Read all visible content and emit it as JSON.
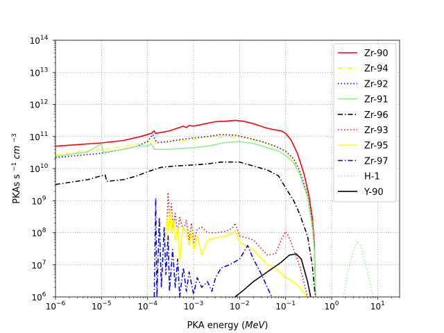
{
  "chart_data": {
    "type": "line",
    "title": "",
    "xlabel": "PKA energy",
    "xlabel_unit": "MeV",
    "ylabel": "PKAs s",
    "ylabel_sup1": "−1",
    "ylabel_mid": "cm",
    "ylabel_sup2": "−3",
    "xscale": "log",
    "yscale": "log",
    "xlim": [
      1e-06,
      30
    ],
    "ylim": [
      1000000.0,
      100000000000000.0
    ],
    "grid": true,
    "legend_position": "upper-right",
    "x_ticks": [
      {
        "base": "10",
        "exp": "−6",
        "value": 1e-06
      },
      {
        "base": "10",
        "exp": "−5",
        "value": 1e-05
      },
      {
        "base": "10",
        "exp": "−4",
        "value": 0.0001
      },
      {
        "base": "10",
        "exp": "−3",
        "value": 0.001
      },
      {
        "base": "10",
        "exp": "−2",
        "value": 0.01
      },
      {
        "base": "10",
        "exp": "−1",
        "value": 0.1
      },
      {
        "base": "10",
        "exp": "0",
        "value": 1
      },
      {
        "base": "10",
        "exp": "1",
        "value": 10
      }
    ],
    "y_ticks": [
      {
        "base": "10",
        "exp": "6",
        "value": 1000000.0
      },
      {
        "base": "10",
        "exp": "7",
        "value": 10000000.0
      },
      {
        "base": "10",
        "exp": "8",
        "value": 100000000.0
      },
      {
        "base": "10",
        "exp": "9",
        "value": 1000000000.0
      },
      {
        "base": "10",
        "exp": "10",
        "value": 10000000000.0
      },
      {
        "base": "10",
        "exp": "11",
        "value": 100000000000.0
      },
      {
        "base": "10",
        "exp": "12",
        "value": 1000000000000.0
      },
      {
        "base": "10",
        "exp": "13",
        "value": 10000000000000.0
      },
      {
        "base": "10",
        "exp": "14",
        "value": 100000000000000.0
      }
    ],
    "series": [
      {
        "name": "Zr-90",
        "color": "#ff0000",
        "dash": "solid",
        "points": [
          [
            1e-06,
            50000000000.0
          ],
          [
            1e-05,
            63000000000.0
          ],
          [
            3e-05,
            75000000000.0
          ],
          [
            7e-05,
            100000000000.0
          ],
          [
            0.00012,
            125000000000.0
          ],
          [
            0.00014,
            150000000000.0
          ],
          [
            0.00015,
            125000000000.0
          ],
          [
            0.0003,
            150000000000.0
          ],
          [
            0.0006,
            210000000000.0
          ],
          [
            0.0007,
            190000000000.0
          ],
          [
            0.0008,
            220000000000.0
          ],
          [
            0.001,
            210000000000.0
          ],
          [
            0.002,
            260000000000.0
          ],
          [
            0.003,
            290000000000.0
          ],
          [
            0.005,
            300000000000.0
          ],
          [
            0.008,
            320000000000.0
          ],
          [
            0.012,
            300000000000.0
          ],
          [
            0.02,
            250000000000.0
          ],
          [
            0.04,
            180000000000.0
          ],
          [
            0.06,
            160000000000.0
          ],
          [
            0.08,
            150000000000.0
          ],
          [
            0.1,
            125000000000.0
          ],
          [
            0.13,
            80000000000.0
          ],
          [
            0.18,
            30000000000.0
          ],
          [
            0.25,
            7000000000.0
          ],
          [
            0.32,
            1500000000.0
          ],
          [
            0.38,
            300000000.0
          ],
          [
            0.42,
            50000000.0
          ],
          [
            0.45,
            1000000.0
          ]
        ]
      },
      {
        "name": "Zr-94",
        "color": "#ffff00",
        "dash": "dashdot",
        "points": [
          [
            1e-06,
            27000000000.0
          ],
          [
            1e-05,
            40000000000.0
          ],
          [
            3e-05,
            50000000000.0
          ],
          [
            7e-05,
            60000000000.0
          ],
          [
            0.00012,
            70000000000.0
          ],
          [
            0.00014,
            80000000000.0
          ],
          [
            0.00015,
            60000000000.0
          ],
          [
            0.0003,
            70000000000.0
          ],
          [
            0.001,
            80000000000.0
          ],
          [
            0.002,
            100000000000.0
          ],
          [
            0.005,
            110000000000.0
          ],
          [
            0.01,
            100000000000.0
          ],
          [
            0.02,
            80000000000.0
          ],
          [
            0.04,
            60000000000.0
          ],
          [
            0.07,
            45000000000.0
          ],
          [
            0.1,
            32000000000.0
          ],
          [
            0.15,
            18000000000.0
          ],
          [
            0.2,
            8000000000.0
          ],
          [
            0.3,
            1500000000.0
          ],
          [
            0.38,
            200000000.0
          ],
          [
            0.43,
            20000000.0
          ],
          [
            0.45,
            1000000.0
          ]
        ]
      },
      {
        "name": "Zr-92",
        "color": "#0000ff",
        "dash": "dotted",
        "points": [
          [
            1e-06,
            22000000000.0
          ],
          [
            1e-05,
            30000000000.0
          ],
          [
            3e-05,
            40000000000.0
          ],
          [
            6e-05,
            50000000000.0
          ],
          [
            0.0001,
            70000000000.0
          ],
          [
            0.00012,
            100000000000.0
          ],
          [
            0.00013,
            115000000000.0
          ],
          [
            0.00014,
            90000000000.0
          ],
          [
            0.00016,
            65000000000.0
          ],
          [
            0.0003,
            70000000000.0
          ],
          [
            0.0005,
            80000000000.0
          ],
          [
            0.001,
            90000000000.0
          ],
          [
            0.002,
            100000000000.0
          ],
          [
            0.004,
            115000000000.0
          ],
          [
            0.008,
            110000000000.0
          ],
          [
            0.015,
            90000000000.0
          ],
          [
            0.03,
            70000000000.0
          ],
          [
            0.06,
            50000000000.0
          ],
          [
            0.1,
            35000000000.0
          ],
          [
            0.15,
            20000000000.0
          ],
          [
            0.2,
            9000000000.0
          ],
          [
            0.3,
            1500000000.0
          ],
          [
            0.38,
            200000000.0
          ],
          [
            0.43,
            20000000.0
          ],
          [
            0.45,
            1000000.0
          ]
        ]
      },
      {
        "name": "Zr-91",
        "color": "#90ee90",
        "dash": "solid",
        "points": [
          [
            1e-06,
            24000000000.0
          ],
          [
            5e-06,
            33000000000.0
          ],
          [
            1e-05,
            60000000000.0
          ],
          [
            1.1e-05,
            32000000000.0
          ],
          [
            3e-05,
            40000000000.0
          ],
          [
            6e-05,
            50000000000.0
          ],
          [
            0.0001,
            50000000000.0
          ],
          [
            0.00012,
            60000000000.0
          ],
          [
            0.00014,
            40000000000.0
          ],
          [
            0.0003,
            40000000000.0
          ],
          [
            0.001,
            45000000000.0
          ],
          [
            0.002,
            50000000000.0
          ],
          [
            0.005,
            65000000000.0
          ],
          [
            0.01,
            70000000000.0
          ],
          [
            0.02,
            60000000000.0
          ],
          [
            0.04,
            45000000000.0
          ],
          [
            0.07,
            35000000000.0
          ],
          [
            0.1,
            26000000000.0
          ],
          [
            0.15,
            15000000000.0
          ],
          [
            0.2,
            7000000000.0
          ],
          [
            0.3,
            1300000000.0
          ],
          [
            0.38,
            150000000.0
          ],
          [
            0.43,
            20000000.0
          ],
          [
            0.45,
            1000000.0
          ]
        ]
      },
      {
        "name": "Zr-96",
        "color": "#000000",
        "dash": "dashdot",
        "points": [
          [
            1e-06,
            3200000000.0
          ],
          [
            5e-06,
            4500000000.0
          ],
          [
            1e-05,
            6000000000.0
          ],
          [
            1.2e-05,
            6300000000.0
          ],
          [
            1.3e-05,
            4000000000.0
          ],
          [
            3e-05,
            4500000000.0
          ],
          [
            6e-05,
            6000000000.0
          ],
          [
            0.0001,
            8000000000.0
          ],
          [
            0.0002,
            11000000000.0
          ],
          [
            0.0004,
            12000000000.0
          ],
          [
            0.001,
            13000000000.0
          ],
          [
            0.002,
            14000000000.0
          ],
          [
            0.004,
            16000000000.0
          ],
          [
            0.01,
            16000000000.0
          ],
          [
            0.02,
            12000000000.0
          ],
          [
            0.04,
            9000000000.0
          ],
          [
            0.07,
            6000000000.0
          ],
          [
            0.1,
            2500000000.0
          ],
          [
            0.15,
            1000000000.0
          ],
          [
            0.2,
            400000000.0
          ],
          [
            0.3,
            80000000.0
          ],
          [
            0.38,
            10000000.0
          ],
          [
            0.43,
            1500000.0
          ],
          [
            0.45,
            1000000.0
          ]
        ]
      },
      {
        "name": "Zr-93",
        "color": "#ff0000",
        "dash": "dotted",
        "points": [
          [
            0.00026,
            130000000.0
          ],
          [
            0.00028,
            1800000000.0
          ],
          [
            0.0003,
            300000000.0
          ],
          [
            0.00033,
            800000000.0
          ],
          [
            0.00036,
            150000000.0
          ],
          [
            0.0004,
            400000000.0
          ],
          [
            0.00045,
            100000000.0
          ],
          [
            0.0005,
            300000000.0
          ],
          [
            0.0006,
            120000000.0
          ],
          [
            0.0007,
            250000000.0
          ],
          [
            0.0008,
            60000000.0
          ],
          [
            0.0009,
            200000000.0
          ],
          [
            0.001,
            50000000.0
          ],
          [
            0.0012,
            130000000.0
          ],
          [
            0.0015,
            150000000.0
          ],
          [
            0.002,
            100000000.0
          ],
          [
            0.003,
            100000000.0
          ],
          [
            0.005,
            110000000.0
          ],
          [
            0.007,
            140000000.0
          ],
          [
            0.008,
            200000000.0
          ],
          [
            0.01,
            80000000.0
          ],
          [
            0.02,
            60000000.0
          ],
          [
            0.04,
            20000000.0
          ],
          [
            0.06,
            22000000.0
          ],
          [
            0.08,
            60000000.0
          ],
          [
            0.1,
            110000000.0
          ],
          [
            0.12,
            70000000.0
          ],
          [
            0.15,
            30000000.0
          ],
          [
            0.2,
            10000000.0
          ],
          [
            0.3,
            1000000.0
          ]
        ]
      },
      {
        "name": "Zr-95",
        "color": "#ffff00",
        "dash": "solid",
        "points": [
          [
            0.00025,
            50000000.0
          ],
          [
            0.00027,
            300000000.0
          ],
          [
            0.00029,
            120000000.0
          ],
          [
            0.00031,
            500000000.0
          ],
          [
            0.00033,
            100000000.0
          ],
          [
            0.00036,
            250000000.0
          ],
          [
            0.0004,
            60000000.0
          ],
          [
            0.00045,
            150000000.0
          ],
          [
            0.0005,
            12000000.0
          ],
          [
            0.00055,
            90000000.0
          ],
          [
            0.0006,
            150000000.0
          ],
          [
            0.0007,
            100000000.0
          ],
          [
            0.0008,
            40000000.0
          ],
          [
            0.0009,
            120000000.0
          ],
          [
            0.001,
            30000000.0
          ],
          [
            0.0012,
            80000000.0
          ],
          [
            0.0015,
            20000000.0
          ],
          [
            0.002,
            60000000.0
          ],
          [
            0.003,
            70000000.0
          ],
          [
            0.005,
            80000000.0
          ],
          [
            0.007,
            100000000.0
          ],
          [
            0.008,
            120000000.0
          ],
          [
            0.01,
            50000000.0
          ],
          [
            0.02,
            30000000.0
          ],
          [
            0.04,
            10000000.0
          ],
          [
            0.06,
            8000000.0
          ],
          [
            0.1,
            4000000.0
          ],
          [
            0.15,
            3000000.0
          ],
          [
            0.2,
            2000000.0
          ],
          [
            0.3,
            1000000.0
          ]
        ]
      },
      {
        "name": "Zr-97",
        "color": "#0000ff",
        "dash": "dashdot",
        "points": [
          [
            0.00014,
            1000000.0
          ],
          [
            0.00015,
            1200000000.0
          ],
          [
            0.00016,
            1000000.0
          ],
          [
            0.00018,
            300000000.0
          ],
          [
            0.0002,
            2000000.0
          ],
          [
            0.00023,
            150000000.0
          ],
          [
            0.00025,
            5000000.0
          ],
          [
            0.00028,
            80000000.0
          ],
          [
            0.0003,
            1500000.0
          ],
          [
            0.00035,
            30000000.0
          ],
          [
            0.0004,
            2000000.0
          ],
          [
            0.00045,
            15000000.0
          ],
          [
            0.0005,
            1000000.0
          ],
          [
            0.0006,
            8000000.0
          ],
          [
            0.0007,
            1500000.0
          ],
          [
            0.0008,
            6000000.0
          ],
          [
            0.001,
            1200000.0
          ],
          [
            0.0012,
            4000000.0
          ],
          [
            0.0015,
            2000000.0
          ],
          [
            0.002,
            3000000.0
          ],
          [
            0.0025,
            1500000.0
          ],
          [
            0.003,
            4000000.0
          ],
          [
            0.004,
            8000000.0
          ],
          [
            0.006,
            10000000.0
          ],
          [
            0.01,
            15000000.0
          ],
          [
            0.015,
            40000000.0
          ],
          [
            0.02,
            15000000.0
          ],
          [
            0.03,
            5000000.0
          ],
          [
            0.04,
            2000000.0
          ],
          [
            0.05,
            1000000.0
          ]
        ]
      },
      {
        "name": "H-1",
        "color": "#90ee90",
        "dash": "dotted",
        "points": [
          [
            1.8,
            1000000.0
          ],
          [
            2.2,
            5000000.0
          ],
          [
            2.8,
            20000000.0
          ],
          [
            3.5,
            55000000.0
          ],
          [
            4.3,
            40000000.0
          ],
          [
            5.3,
            12000000.0
          ],
          [
            6.5,
            4000000.0
          ],
          [
            8,
            1000000.0
          ]
        ]
      },
      {
        "name": "Y-90",
        "color": "#000000",
        "dash": "solid",
        "points": [
          [
            0.008,
            1000000.0
          ],
          [
            0.012,
            1600000.0
          ],
          [
            0.02,
            3000000.0
          ],
          [
            0.04,
            6000000.0
          ],
          [
            0.08,
            12000000.0
          ],
          [
            0.12,
            20000000.0
          ],
          [
            0.17,
            22000000.0
          ],
          [
            0.22,
            15000000.0
          ],
          [
            0.3,
            3000000.0
          ],
          [
            0.35,
            1000000.0
          ]
        ]
      }
    ]
  }
}
